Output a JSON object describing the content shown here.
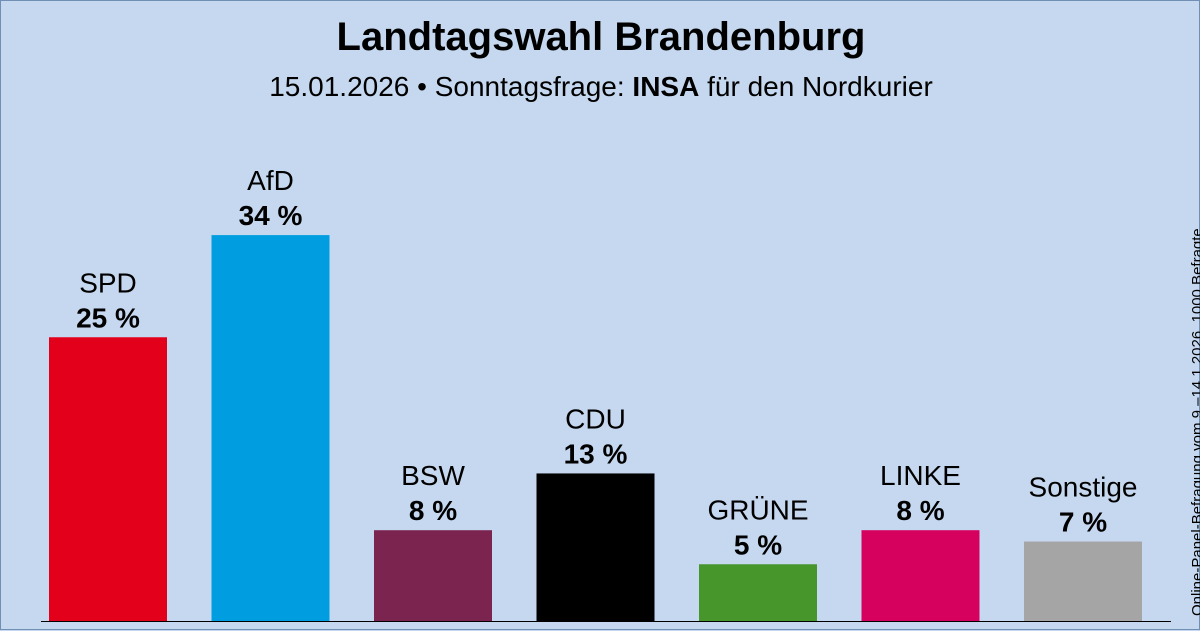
{
  "header": {
    "title": "Landtagswahl Brandenburg",
    "subtitle_prefix": "15.01.2026 • Sonntagsfrage:",
    "pollster": "INSA",
    "subtitle_suffix": "für den Nordkurier"
  },
  "footnote": "Online-Panel-Befragung vom 9.–14.1.2026, 1000 Befragte",
  "chart_data": {
    "type": "bar",
    "title": "Landtagswahl Brandenburg",
    "subtitle": "15.01.2026 • Sonntagsfrage: INSA für den Nordkurier",
    "categories": [
      "SPD",
      "AfD",
      "BSW",
      "CDU",
      "GRÜNE",
      "LINKE",
      "Sonstige"
    ],
    "values": [
      25,
      34,
      8,
      13,
      5,
      8,
      7
    ],
    "value_labels": [
      "25 %",
      "34 %",
      "8 %",
      "13 %",
      "5 %",
      "8 %",
      "7 %"
    ],
    "colors": [
      "#e3001b",
      "#009ee0",
      "#7b2450",
      "#000000",
      "#46962b",
      "#d6005f",
      "#a5a5a5"
    ],
    "unit": "%",
    "xlabel": "",
    "ylabel": "",
    "ylim": [
      0,
      34
    ],
    "grid": false,
    "legend": "none"
  }
}
